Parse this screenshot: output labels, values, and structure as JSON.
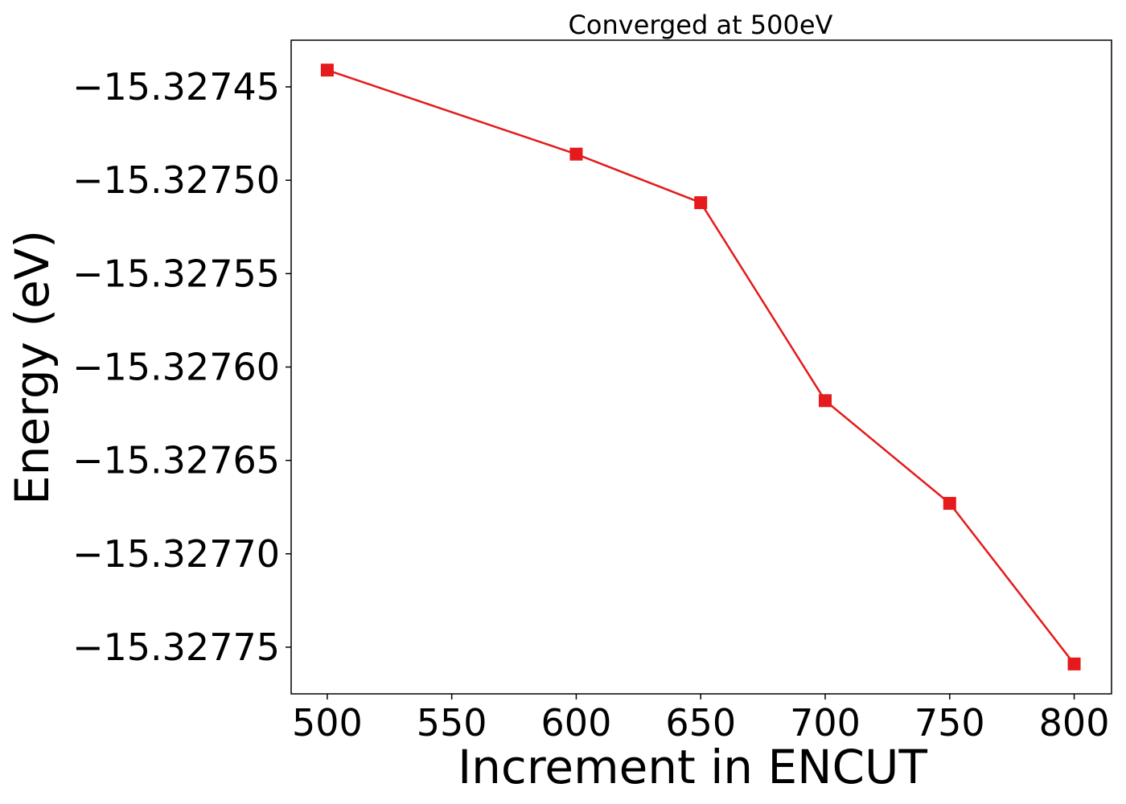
{
  "chart_data": {
    "type": "line",
    "title": "Converged at 500eV",
    "xlabel": "Increment in ENCUT",
    "ylabel": "Energy (eV)",
    "x": [
      500,
      600,
      650,
      700,
      750,
      800
    ],
    "series": [
      {
        "values": [
          -15.327441,
          -15.327486,
          -15.327512,
          -15.327618,
          -15.327673,
          -15.327759
        ],
        "color": "#e41a1c",
        "marker": "square"
      }
    ],
    "xticks": [
      500,
      550,
      600,
      650,
      700,
      750,
      800
    ],
    "xtick_labels": [
      "500",
      "550",
      "600",
      "650",
      "700",
      "750",
      "800"
    ],
    "yticks": [
      -15.32745,
      -15.3275,
      -15.32755,
      -15.3276,
      -15.32765,
      -15.3277,
      -15.32775
    ],
    "ytick_labels": [
      "−15.32745",
      "−15.32750",
      "−15.32755",
      "−15.32760",
      "−15.32765",
      "−15.32770",
      "−15.32775"
    ],
    "xlim": [
      485.5,
      815
    ],
    "ylim": [
      -15.327775,
      -15.327425
    ],
    "grid": false,
    "legend": "none"
  }
}
